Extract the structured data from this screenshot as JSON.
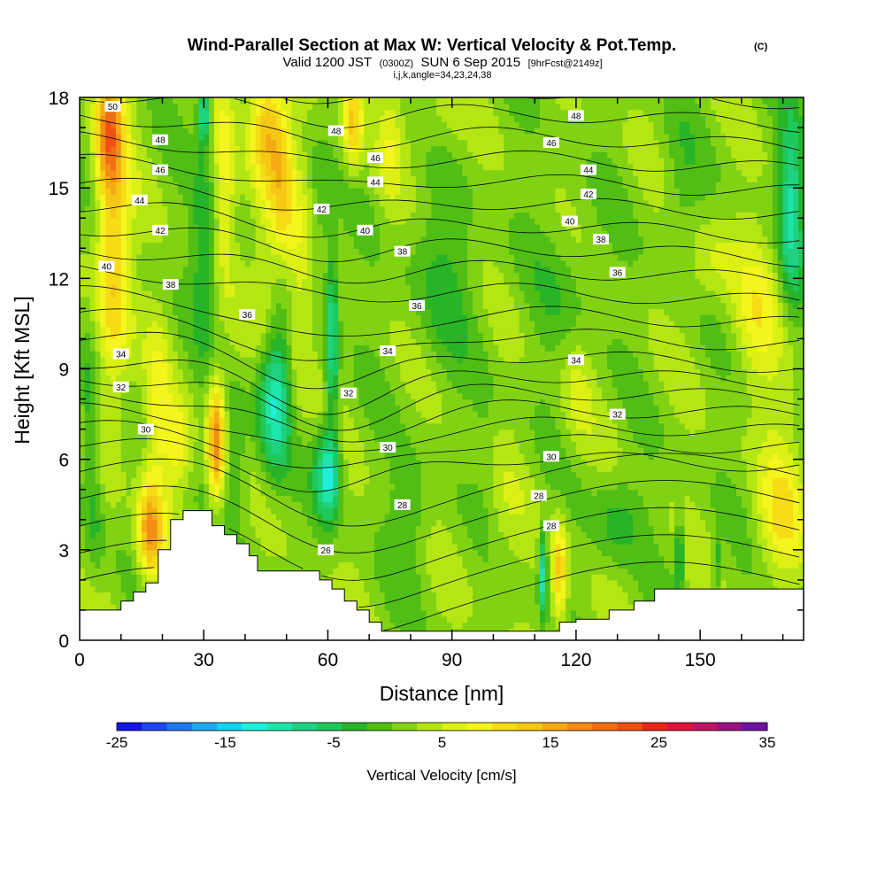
{
  "header": {
    "title": "Wind-Parallel Section at Max W: Vertical Velocity & Pot.Temp.",
    "title_units": "(C)",
    "valid_prefix": "Valid 1200 JST",
    "valid_utc": "(0300Z)",
    "valid_date": "SUN 6 Sep 2015",
    "forecast": "[9hrFcst@2149z]",
    "indices": "i,j,k,angle=34,23,24,38"
  },
  "chart_data": {
    "type": "heatmap",
    "title": "Wind-Parallel Section at Max W: Vertical Velocity & Pot.Temp.",
    "xlabel": "Distance [nm]",
    "ylabel": "Height [Kft MSL]",
    "xlim": [
      0,
      175
    ],
    "ylim": [
      0,
      18
    ],
    "x_ticks": [
      0,
      30,
      60,
      90,
      120,
      150
    ],
    "y_ticks": [
      0,
      3,
      6,
      9,
      12,
      15,
      18
    ],
    "grid": false,
    "terrain": [
      [
        0,
        1
      ],
      [
        10,
        1
      ],
      [
        10,
        1.3
      ],
      [
        13,
        1.3
      ],
      [
        13,
        1.6
      ],
      [
        16,
        1.6
      ],
      [
        16,
        1.9
      ],
      [
        19,
        1.9
      ],
      [
        19,
        3
      ],
      [
        22,
        3
      ],
      [
        22,
        4
      ],
      [
        25,
        4
      ],
      [
        25,
        4.3
      ],
      [
        32,
        4.3
      ],
      [
        32,
        3.8
      ],
      [
        35,
        3.8
      ],
      [
        35,
        3.5
      ],
      [
        38,
        3.5
      ],
      [
        38,
        3.2
      ],
      [
        41,
        3.2
      ],
      [
        41,
        2.8
      ],
      [
        43,
        2.8
      ],
      [
        43,
        2.3
      ],
      [
        58,
        2.3
      ],
      [
        58,
        2
      ],
      [
        61,
        2
      ],
      [
        61,
        1.7
      ],
      [
        64,
        1.7
      ],
      [
        64,
        1.3
      ],
      [
        67,
        1.3
      ],
      [
        67,
        1
      ],
      [
        70,
        1
      ],
      [
        70,
        0.6
      ],
      [
        73,
        0.6
      ],
      [
        73,
        0.3
      ],
      [
        116,
        0.3
      ],
      [
        116,
        0.6
      ],
      [
        120,
        0.6
      ],
      [
        120,
        0.7
      ],
      [
        128,
        0.7
      ],
      [
        128,
        1
      ],
      [
        134,
        1
      ],
      [
        134,
        1.3
      ],
      [
        139,
        1.3
      ],
      [
        139,
        1.7
      ],
      [
        175,
        1.7
      ]
    ],
    "colorbar": {
      "label": "Vertical Velocity [cm/s]",
      "min": -25,
      "max": 35,
      "step": 2.5,
      "tick_labels": [
        "-25",
        "-15",
        "-5",
        "5",
        "15",
        "25",
        "35"
      ],
      "colors": [
        "#1414e6",
        "#1e46f0",
        "#1e78f0",
        "#1eaaf0",
        "#14d2f0",
        "#1ef0dc",
        "#1ee6aa",
        "#1ed282",
        "#1ec85a",
        "#28b428",
        "#50be14",
        "#82d214",
        "#b4e614",
        "#dcf014",
        "#f5f51e",
        "#f5dc14",
        "#f5c814",
        "#f5aa14",
        "#f58c14",
        "#f06e14",
        "#f05014",
        "#e62814",
        "#dc143c",
        "#be1464",
        "#961482",
        "#6e14a0"
      ]
    },
    "theta_labels": [
      {
        "text": "50",
        "x": 8,
        "y": 17.7
      },
      {
        "text": "48",
        "x": 19.5,
        "y": 16.6
      },
      {
        "text": "46",
        "x": 19.5,
        "y": 15.6
      },
      {
        "text": "44",
        "x": 14.5,
        "y": 14.6
      },
      {
        "text": "42",
        "x": 19.5,
        "y": 13.6
      },
      {
        "text": "40",
        "x": 6.5,
        "y": 12.4
      },
      {
        "text": "38",
        "x": 22,
        "y": 11.8
      },
      {
        "text": "36",
        "x": 40.5,
        "y": 10.8
      },
      {
        "text": "34",
        "x": 10,
        "y": 9.5
      },
      {
        "text": "32",
        "x": 10,
        "y": 8.4
      },
      {
        "text": "30",
        "x": 16,
        "y": 7
      },
      {
        "text": "48",
        "x": 62,
        "y": 16.9
      },
      {
        "text": "46",
        "x": 71.5,
        "y": 16
      },
      {
        "text": "44",
        "x": 71.5,
        "y": 15.2
      },
      {
        "text": "42",
        "x": 58.5,
        "y": 14.3
      },
      {
        "text": "40",
        "x": 69,
        "y": 13.6
      },
      {
        "text": "38",
        "x": 78,
        "y": 12.9
      },
      {
        "text": "36",
        "x": 81.5,
        "y": 11.1
      },
      {
        "text": "34",
        "x": 74.5,
        "y": 9.6
      },
      {
        "text": "32",
        "x": 65,
        "y": 8.2
      },
      {
        "text": "30",
        "x": 74.5,
        "y": 6.4
      },
      {
        "text": "28",
        "x": 78,
        "y": 4.5
      },
      {
        "text": "26",
        "x": 59.5,
        "y": 3
      },
      {
        "text": "48",
        "x": 120,
        "y": 17.4
      },
      {
        "text": "46",
        "x": 114,
        "y": 16.5
      },
      {
        "text": "44",
        "x": 123,
        "y": 15.6
      },
      {
        "text": "42",
        "x": 123,
        "y": 14.8
      },
      {
        "text": "40",
        "x": 118.5,
        "y": 13.9
      },
      {
        "text": "38",
        "x": 126,
        "y": 13.3
      },
      {
        "text": "36",
        "x": 130,
        "y": 12.2
      },
      {
        "text": "34",
        "x": 120,
        "y": 9.3
      },
      {
        "text": "32",
        "x": 130,
        "y": 7.5
      },
      {
        "text": "30",
        "x": 114,
        "y": 6.1
      },
      {
        "text": "28",
        "x": 111,
        "y": 4.8
      },
      {
        "text": "28",
        "x": 114,
        "y": 3.8
      }
    ],
    "w_features": [
      {
        "x": 8,
        "y": 13,
        "sx": 4,
        "sy": 5.5,
        "v": 12
      },
      {
        "x": 7,
        "y": 17,
        "sx": 3,
        "sy": 2,
        "v": 14
      },
      {
        "x": 19,
        "y": 7.5,
        "sx": 3,
        "sy": 3,
        "v": 6
      },
      {
        "x": 17,
        "y": 3.6,
        "sx": 3,
        "sy": 1.6,
        "v": 16
      },
      {
        "x": 24,
        "y": 6.5,
        "sx": 3,
        "sy": 1.5,
        "v": 7
      },
      {
        "x": 33,
        "y": 6.6,
        "sx": 2,
        "sy": 2,
        "v": 18
      },
      {
        "x": 35,
        "y": 15.5,
        "sx": 2.5,
        "sy": 3,
        "v": 6
      },
      {
        "x": 45,
        "y": 17,
        "sx": 4,
        "sy": 2,
        "v": 13
      },
      {
        "x": 49,
        "y": 15,
        "sx": 3,
        "sy": 2.5,
        "v": 10
      },
      {
        "x": 45,
        "y": 12,
        "sx": 3.5,
        "sy": 3.5,
        "v": 5
      },
      {
        "x": 66,
        "y": 17.2,
        "sx": 2.5,
        "sy": 1.5,
        "v": 12
      },
      {
        "x": 53,
        "y": 11,
        "sx": 3,
        "sy": 4,
        "v": 5
      },
      {
        "x": 30,
        "y": 13,
        "sx": 3,
        "sy": 3,
        "v": -6
      },
      {
        "x": 30,
        "y": 17.5,
        "sx": 1.5,
        "sy": 1,
        "v": -14
      },
      {
        "x": 47,
        "y": 8,
        "sx": 4,
        "sy": 2.5,
        "v": -14
      },
      {
        "x": 60,
        "y": 5.5,
        "sx": 3,
        "sy": 1.5,
        "v": -15
      },
      {
        "x": 61,
        "y": 10,
        "sx": 1.5,
        "sy": 3,
        "v": -12
      },
      {
        "x": 38,
        "y": 6.2,
        "sx": 3,
        "sy": 2.2,
        "v": -4
      },
      {
        "x": 58,
        "y": 14,
        "sx": 2.5,
        "sy": 2.5,
        "v": -4
      },
      {
        "x": 88,
        "y": 12,
        "sx": 9,
        "sy": 3,
        "v": -4
      },
      {
        "x": 118,
        "y": 11.5,
        "sx": 8,
        "sy": 3,
        "v": -3
      },
      {
        "x": 145,
        "y": 14.5,
        "sx": 5,
        "sy": 3,
        "v": -3
      },
      {
        "x": 172,
        "y": 14.5,
        "sx": 3,
        "sy": 3,
        "v": -12
      },
      {
        "x": 80,
        "y": 4,
        "sx": 5,
        "sy": 2,
        "v": -4
      },
      {
        "x": 98,
        "y": 6,
        "sx": 3,
        "sy": 3,
        "v": -2
      },
      {
        "x": 100,
        "y": 4,
        "sx": 7,
        "sy": 2.5,
        "v": 2
      },
      {
        "x": 112,
        "y": 2.2,
        "sx": 1,
        "sy": 1.5,
        "v": -13
      },
      {
        "x": 116,
        "y": 2.3,
        "sx": 1.8,
        "sy": 1.6,
        "v": 12
      },
      {
        "x": 145,
        "y": 2.8,
        "sx": 1,
        "sy": 1.2,
        "v": -10
      },
      {
        "x": 154,
        "y": 2.6,
        "sx": 1,
        "sy": 1.2,
        "v": -6
      },
      {
        "x": 170,
        "y": 4,
        "sx": 6,
        "sy": 1.8,
        "v": 7
      },
      {
        "x": 152,
        "y": 12.5,
        "sx": 6,
        "sy": 1.5,
        "v": 4
      },
      {
        "x": 164,
        "y": 11,
        "sx": 6,
        "sy": 2.5,
        "v": 6
      },
      {
        "x": 170,
        "y": 6.5,
        "sx": 5,
        "sy": 2.5,
        "v": 3
      },
      {
        "x": 130,
        "y": 4,
        "sx": 6,
        "sy": 1.5,
        "v": -5
      },
      {
        "x": 120,
        "y": 8.5,
        "sx": 4,
        "sy": 2,
        "v": 4
      },
      {
        "x": 75,
        "y": 16.5,
        "sx": 3,
        "sy": 2,
        "v": 4
      },
      {
        "x": 4,
        "y": 4,
        "sx": 2,
        "sy": 2,
        "v": -4
      },
      {
        "x": 2,
        "y": 7,
        "sx": 2,
        "sy": 3,
        "v": -6
      },
      {
        "x": 86,
        "y": 17.2,
        "sx": 6,
        "sy": 1.3,
        "v": 3
      }
    ]
  }
}
